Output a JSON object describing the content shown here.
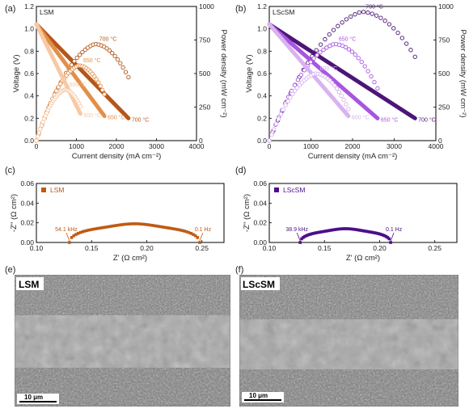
{
  "chart_data": [
    {
      "panel": "(a)",
      "type": "line",
      "legend": "LSM",
      "xlabel": "Current density (mA cm⁻²)",
      "ylabel": "Voltage (V)",
      "y2label": "Power density (mW cm⁻²)",
      "xlim": [
        0,
        4000
      ],
      "ylim": [
        0,
        1.2
      ],
      "y2lim": [
        0,
        1000
      ],
      "xticks": [
        "0",
        "1000",
        "2000",
        "3000",
        "4000"
      ],
      "yticks": [
        "0.0",
        "0.2",
        "0.4",
        "0.6",
        "0.8",
        "1.0",
        "1.2"
      ],
      "y2ticks": [
        "0",
        "250",
        "500",
        "750",
        "1000"
      ],
      "series": [
        {
          "name": "700 °C",
          "color": "#b5561a",
          "x": [
            0,
            2300
          ],
          "voltage": [
            1.04,
            0.2
          ],
          "power_peak": [
            1450,
            720
          ],
          "label_iv": "700 °C",
          "label_p": "700 °C"
        },
        {
          "name": "650 °C",
          "color": "#e38f4a",
          "x": [
            0,
            1700
          ],
          "voltage": [
            1.04,
            0.22
          ],
          "power_peak": [
            1050,
            560
          ],
          "label_iv": "650 °C",
          "label_p": "650 °C"
        },
        {
          "name": "600 °C",
          "color": "#f7c9a5",
          "x": [
            0,
            1100
          ],
          "voltage": [
            1.04,
            0.24
          ],
          "power_peak": [
            700,
            380
          ],
          "label_iv": "600 °C",
          "label_p": "600 °C"
        }
      ]
    },
    {
      "panel": "(b)",
      "type": "line",
      "legend": "LScSM",
      "xlabel": "Current density (mA cm⁻²)",
      "ylabel": "Voltage (V)",
      "y2label": "Power density (mW cm⁻²)",
      "xlim": [
        0,
        4000
      ],
      "ylim": [
        0,
        1.2
      ],
      "y2lim": [
        0,
        1000
      ],
      "xticks": [
        "0",
        "1000",
        "2000",
        "3000",
        "4000"
      ],
      "yticks": [
        "0.0",
        "0.2",
        "0.4",
        "0.6",
        "0.8",
        "1.0",
        "1.2"
      ],
      "y2ticks": [
        "0",
        "250",
        "500",
        "750",
        "1000"
      ],
      "series": [
        {
          "name": "700 °C",
          "color": "#4b1677",
          "x": [
            0,
            3500
          ],
          "voltage": [
            1.04,
            0.2
          ],
          "power_peak": [
            2200,
            960
          ],
          "label_iv": "700 °C",
          "label_p": "700 °C"
        },
        {
          "name": "650 °C",
          "color": "#a855e0",
          "x": [
            0,
            2600
          ],
          "voltage": [
            1.04,
            0.2
          ],
          "power_peak": [
            1550,
            720
          ],
          "label_iv": "650 °C",
          "label_p": "650 °C"
        },
        {
          "name": "600 °C",
          "color": "#d9b3f0",
          "x": [
            0,
            1900
          ],
          "voltage": [
            1.04,
            0.22
          ],
          "power_peak": [
            1100,
            500
          ],
          "label_iv": "600 °C",
          "label_p": "600 °C"
        }
      ]
    },
    {
      "panel": "(c)",
      "type": "scatter",
      "legend": "LSM",
      "color": "#c05a12",
      "xlabel": "Z' (Ω cm²)",
      "ylabel": "-Z'' (Ω cm²)",
      "xlim": [
        0.1,
        0.27
      ],
      "ylim": [
        0,
        0.06
      ],
      "xticks": [
        "0.10",
        "0.15",
        "0.20",
        "0.25"
      ],
      "yticks": [
        "0.00",
        "0.02",
        "0.04",
        "0.06"
      ],
      "z_start": 0.13,
      "z_end": 0.248,
      "z_peak_height": 0.019,
      "freq_high": "54.1 kHz",
      "freq_low": "0.1 Hz"
    },
    {
      "panel": "(d)",
      "type": "scatter",
      "legend": "LScSM",
      "color": "#4d0e8a",
      "xlabel": "Z' (Ω cm²)",
      "ylabel": "-Z'' (Ω cm²)",
      "xlim": [
        0.1,
        0.27
      ],
      "ylim": [
        0,
        0.06
      ],
      "xticks": [
        "0.10",
        "0.15",
        "0.20",
        "0.25"
      ],
      "yticks": [
        "0.00",
        "0.02",
        "0.04",
        "0.06"
      ],
      "z_start": 0.128,
      "z_end": 0.21,
      "z_peak_height": 0.014,
      "freq_high": "38.9 kHz",
      "freq_low": "0.1 Hz"
    }
  ],
  "panels": {
    "a": "(a)",
    "b": "(b)",
    "c": "(c)",
    "d": "(d)",
    "e": "(e)",
    "f": "(f)"
  },
  "sem": [
    {
      "label": "LSM",
      "scale": "10 μm"
    },
    {
      "label": "LScSM",
      "scale": "10 μm"
    }
  ]
}
